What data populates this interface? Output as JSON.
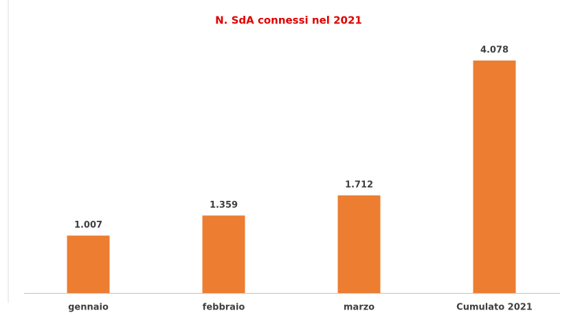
{
  "chart_data": {
    "type": "bar",
    "title": "N. SdA connessi nel 2021",
    "categories": [
      "gennaio",
      "febbraio",
      "marzo",
      "Cumulato 2021"
    ],
    "values": [
      1007,
      1359,
      1712,
      4078
    ],
    "value_labels": [
      "1.007",
      "1.359",
      "1.712",
      "4.078"
    ],
    "color": "#ed7d31"
  }
}
